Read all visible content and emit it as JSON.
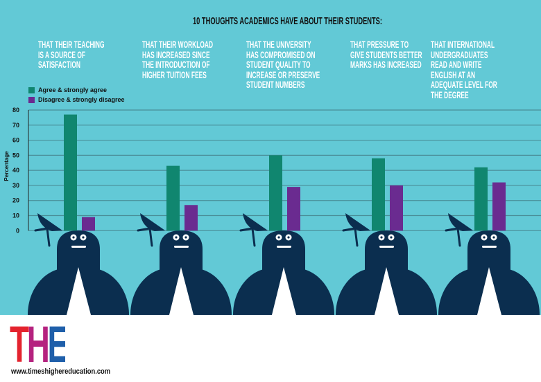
{
  "colors": {
    "background": "#62c9d6",
    "agree": "#10866f",
    "disagree": "#6a2b90",
    "figure": "#0b2e4f",
    "grid": "#4a8e98",
    "logo_t": "#e4232e",
    "logo_h": "#b5227f",
    "logo_e": "#1f5faa"
  },
  "logo": {
    "letters": [
      "T",
      "H",
      "E"
    ],
    "url": "www.timeshighereducation.com"
  },
  "chart_data": {
    "type": "bar",
    "title": "10 THOUGHTS ACADEMICS HAVE ABOUT THEIR STUDENTS:",
    "ylabel": "Percentage",
    "xlabel": "",
    "ylim": [
      0,
      80
    ],
    "yticks": [
      "0",
      "10",
      "20",
      "30",
      "40",
      "50",
      "60",
      "70",
      "80"
    ],
    "grid": true,
    "legend_position": "top-left",
    "categories": [
      "THAT THEIR TEACHING\nIS A SOURCE OF\nSATISFACTION",
      "THAT THEIR WORKLOAD\nHAS INCREASED SINCE\nTHE INTRODUCTION OF\nHIGHER TUITION FEES",
      "THAT THE UNIVERSITY\nHAS COMPROMISED ON\nSTUDENT QUALITY TO\nINCREASE OR PRESERVE\nSTUDENT NUMBERS",
      "THAT PRESSURE TO\nGIVE STUDENTS BETTER\nMARKS HAS INCREASED",
      "THAT INTERNATIONAL\nUNDERGRADUATES\nREAD AND WRITE\nENGLISH AT AN\nADEQUATE LEVEL FOR\nTHE DEGREE"
    ],
    "series": [
      {
        "name": "Agree & strongly agree",
        "values": [
          77,
          43,
          50,
          48,
          42
        ]
      },
      {
        "name": "Disagree & strongly disagree",
        "values": [
          9,
          17,
          29,
          30,
          32
        ]
      }
    ]
  }
}
